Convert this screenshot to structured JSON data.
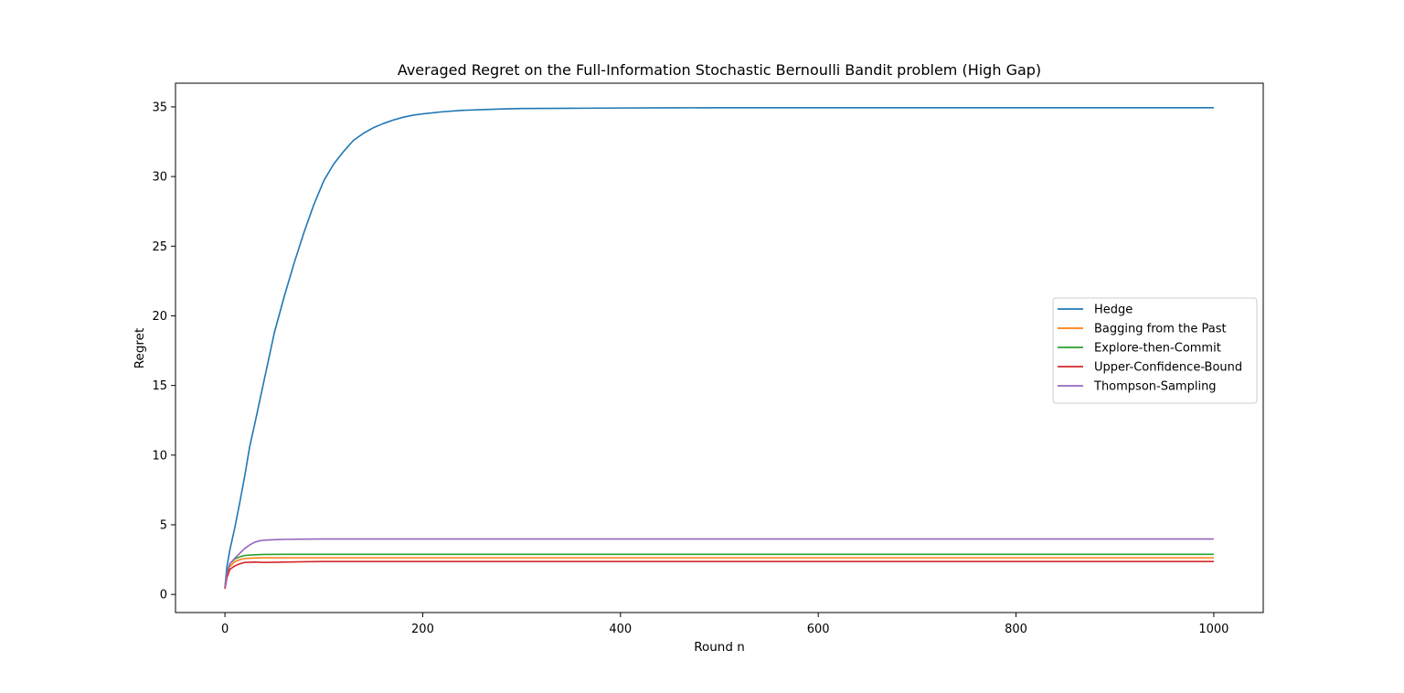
{
  "chart_data": {
    "type": "line",
    "title": "Averaged Regret on the Full-Information Stochastic Bernoulli Bandit problem (High Gap)",
    "xlabel": "Round n",
    "ylabel": "Regret",
    "xlim": [
      -50,
      1050
    ],
    "ylim": [
      -1.3,
      36.7
    ],
    "xticks": [
      0,
      200,
      400,
      600,
      800,
      1000
    ],
    "yticks": [
      0,
      5,
      10,
      15,
      20,
      25,
      30,
      35
    ],
    "grid": false,
    "legend_position": "center-right",
    "series": [
      {
        "name": "Hedge",
        "color": "#1f77b4",
        "x": [
          0,
          2,
          5,
          10,
          15,
          20,
          25,
          30,
          40,
          50,
          60,
          70,
          80,
          90,
          100,
          110,
          120,
          130,
          140,
          150,
          160,
          170,
          180,
          190,
          200,
          220,
          240,
          260,
          280,
          300,
          350,
          400,
          450,
          500,
          600,
          700,
          800,
          900,
          1000
        ],
        "y": [
          0.5,
          2.0,
          3.2,
          4.8,
          6.6,
          8.5,
          10.6,
          12.2,
          15.5,
          18.8,
          21.4,
          23.8,
          26.0,
          28.0,
          29.7,
          30.9,
          31.8,
          32.6,
          33.1,
          33.5,
          33.8,
          34.05,
          34.25,
          34.4,
          34.5,
          34.65,
          34.75,
          34.8,
          34.85,
          34.88,
          34.9,
          34.92,
          34.93,
          34.94,
          34.94,
          34.94,
          34.94,
          34.94,
          34.94
        ]
      },
      {
        "name": "Bagging from the Past",
        "color": "#ff7f0e",
        "x": [
          0,
          2,
          5,
          10,
          15,
          20,
          30,
          40,
          60,
          100,
          200,
          400,
          600,
          800,
          1000
        ],
        "y": [
          0.5,
          1.5,
          2.0,
          2.35,
          2.5,
          2.58,
          2.62,
          2.63,
          2.63,
          2.63,
          2.63,
          2.63,
          2.63,
          2.63,
          2.63
        ]
      },
      {
        "name": "Explore-then-Commit",
        "color": "#2ca02c",
        "x": [
          0,
          2,
          5,
          10,
          15,
          20,
          30,
          40,
          60,
          100,
          200,
          400,
          600,
          800,
          1000
        ],
        "y": [
          0.5,
          1.6,
          2.2,
          2.55,
          2.7,
          2.8,
          2.85,
          2.87,
          2.88,
          2.88,
          2.88,
          2.88,
          2.88,
          2.88,
          2.88
        ]
      },
      {
        "name": "Upper-Confidence-Bound",
        "color": "#d62728",
        "x": [
          0,
          2,
          5,
          10,
          15,
          20,
          30,
          40,
          60,
          80,
          100,
          200,
          400,
          600,
          800,
          1000
        ],
        "y": [
          0.4,
          1.2,
          1.8,
          2.05,
          2.2,
          2.3,
          2.32,
          2.3,
          2.32,
          2.35,
          2.36,
          2.36,
          2.36,
          2.36,
          2.36,
          2.36
        ]
      },
      {
        "name": "Thompson-Sampling",
        "color": "#9467bd",
        "x": [
          0,
          2,
          5,
          10,
          15,
          20,
          25,
          30,
          35,
          40,
          50,
          60,
          80,
          100,
          200,
          400,
          600,
          800,
          1000
        ],
        "y": [
          0.5,
          1.5,
          2.2,
          2.6,
          2.95,
          3.3,
          3.55,
          3.75,
          3.85,
          3.9,
          3.93,
          3.95,
          3.97,
          3.98,
          3.98,
          3.98,
          3.98,
          3.98,
          3.98
        ]
      }
    ]
  }
}
